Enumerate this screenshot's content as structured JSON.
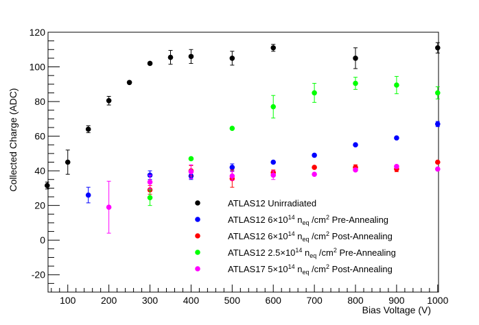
{
  "chart_data": {
    "type": "scatter",
    "title": "",
    "xlabel": "Bias Voltage (V)",
    "ylabel": "Collected Charge (ADC)",
    "xlim": [
      50,
      1000
    ],
    "ylim": [
      -30,
      120
    ],
    "xticks": [
      100,
      200,
      300,
      400,
      500,
      600,
      700,
      800,
      900,
      1000
    ],
    "yticks": [
      -20,
      0,
      20,
      40,
      60,
      80,
      100,
      120
    ],
    "grid": false,
    "legend_position": "center-bottom",
    "series": [
      {
        "name": "ATLAS12 Unirradiated",
        "color": "#000000",
        "points": [
          {
            "x": 50,
            "y": 31.5,
            "err": 2.0
          },
          {
            "x": 100,
            "y": 45.0,
            "err": 7.0
          },
          {
            "x": 150,
            "y": 64.0,
            "err": 2.0
          },
          {
            "x": 200,
            "y": 80.5,
            "err": 2.5
          },
          {
            "x": 250,
            "y": 91.0,
            "err": 1.0
          },
          {
            "x": 300,
            "y": 102.0,
            "err": 1.0
          },
          {
            "x": 350,
            "y": 105.5,
            "err": 4.0
          },
          {
            "x": 400,
            "y": 106.0,
            "err": 4.0
          },
          {
            "x": 500,
            "y": 105.0,
            "err": 4.0
          },
          {
            "x": 600,
            "y": 111.0,
            "err": 2.0
          },
          {
            "x": 800,
            "y": 105.0,
            "err": 6.0
          },
          {
            "x": 1000,
            "y": 111.0,
            "err": 3.0
          }
        ]
      },
      {
        "name": "ATLAS12 6×10¹⁴ n_eq /cm² Pre-Annealing",
        "label_parts": {
          "pre": "ATLAS12 6×10",
          "exp": "14",
          "n": " n",
          "sub": "eq",
          "unit": " /cm",
          "unitexp": "2",
          "post": " Pre-Annealing"
        },
        "color": "#0000ff",
        "points": [
          {
            "x": 150,
            "y": 26.0,
            "err": 4.5
          },
          {
            "x": 300,
            "y": 37.5,
            "err": 2.5
          },
          {
            "x": 400,
            "y": 37.0,
            "err": 2.0
          },
          {
            "x": 500,
            "y": 42.0,
            "err": 2.0
          },
          {
            "x": 600,
            "y": 45.0,
            "err": 0.5
          },
          {
            "x": 700,
            "y": 49.0,
            "err": 0.5
          },
          {
            "x": 800,
            "y": 55.0,
            "err": 0.5
          },
          {
            "x": 900,
            "y": 59.0,
            "err": 0.5
          },
          {
            "x": 1000,
            "y": 67.0,
            "err": 1.5
          }
        ]
      },
      {
        "name": "ATLAS12 6×10¹⁴ n_eq /cm² Post-Annealing",
        "label_parts": {
          "pre": "ATLAS12 6×10",
          "exp": "14",
          "n": " n",
          "sub": "eq",
          "unit": " /cm",
          "unitexp": "2",
          "post": " Post-Annealing"
        },
        "color": "#ff0000",
        "points": [
          {
            "x": 300,
            "y": 29.0,
            "err": 2.5
          },
          {
            "x": 400,
            "y": 40.0,
            "err": 3.0
          },
          {
            "x": 500,
            "y": 35.5,
            "err": 5.0
          },
          {
            "x": 600,
            "y": 39.0,
            "err": 1.5
          },
          {
            "x": 700,
            "y": 42.0,
            "err": 1.0
          },
          {
            "x": 800,
            "y": 42.0,
            "err": 1.5
          },
          {
            "x": 900,
            "y": 41.0,
            "err": 1.5
          },
          {
            "x": 1000,
            "y": 45.0,
            "err": 0.5
          }
        ]
      },
      {
        "name": "ATLAS12 2.5×10¹⁴ n_eq /cm² Pre-Annealing",
        "label_parts": {
          "pre": "ATLAS12 2.5×10",
          "exp": "14",
          "n": " n",
          "sub": "eq",
          "unit": " /cm",
          "unitexp": "2",
          "post": " Pre-Annealing"
        },
        "color": "#00ff00",
        "points": [
          {
            "x": 300,
            "y": 24.5,
            "err": 4.5
          },
          {
            "x": 400,
            "y": 47.0,
            "err": 1.0
          },
          {
            "x": 500,
            "y": 64.5,
            "err": 1.0
          },
          {
            "x": 600,
            "y": 77.0,
            "err": 6.5
          },
          {
            "x": 700,
            "y": 85.0,
            "err": 5.5
          },
          {
            "x": 800,
            "y": 90.5,
            "err": 3.5
          },
          {
            "x": 900,
            "y": 89.5,
            "err": 5.0
          },
          {
            "x": 1000,
            "y": 85.0,
            "err": 3.5
          }
        ]
      },
      {
        "name": "ATLAS17 5×10¹⁴ n_eq /cm² Post-Annealing",
        "label_parts": {
          "pre": "ATLAS17 5×10",
          "exp": "14",
          "n": " n",
          "sub": "eq",
          "unit": " /cm",
          "unitexp": "2",
          "post": " Post-Annealing"
        },
        "color": "#ff00ff",
        "points": [
          {
            "x": 200,
            "y": 19.0,
            "err": 15.0
          },
          {
            "x": 300,
            "y": 33.5,
            "err": 4.0
          },
          {
            "x": 400,
            "y": 39.5,
            "err": 4.0
          },
          {
            "x": 500,
            "y": 37.0,
            "err": 2.5
          },
          {
            "x": 600,
            "y": 37.5,
            "err": 2.5
          },
          {
            "x": 700,
            "y": 38.0,
            "err": 0.5
          },
          {
            "x": 800,
            "y": 40.5,
            "err": 1.0
          },
          {
            "x": 900,
            "y": 42.5,
            "err": 1.0
          },
          {
            "x": 1000,
            "y": 41.0,
            "err": 0.5
          }
        ]
      }
    ]
  }
}
